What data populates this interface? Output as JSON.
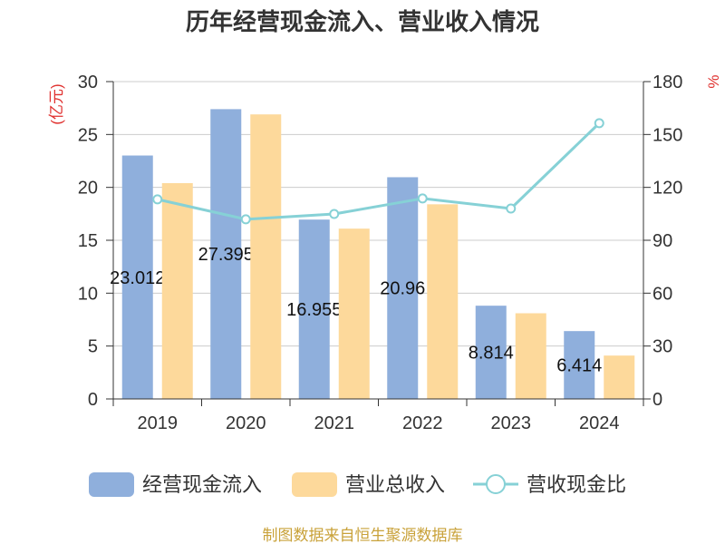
{
  "chart_data": {
    "type": "bar",
    "title": "历年经营现金流入、营业收入情况",
    "categories": [
      "2019",
      "2020",
      "2021",
      "2022",
      "2023",
      "2024"
    ],
    "series": [
      {
        "name": "经营现金流入",
        "type": "bar",
        "axis": "left",
        "color": "#8fafdc",
        "values": [
          23.012,
          27.395,
          16.955,
          20.96,
          8.814,
          6.414
        ],
        "labels": [
          "23.012",
          "27.395",
          "16.955",
          "20.96",
          "8.814",
          "6.414"
        ]
      },
      {
        "name": "营业总收入",
        "type": "bar",
        "axis": "left",
        "color": "#fdd99b",
        "values": [
          20.4,
          26.9,
          16.1,
          18.4,
          8.1,
          4.1
        ]
      },
      {
        "name": "营收现金比",
        "type": "line",
        "axis": "right",
        "color": "#86d1d6",
        "values": [
          113.2,
          101.9,
          104.9,
          113.7,
          108.0,
          156.4
        ]
      }
    ],
    "xlabel": "",
    "ylabel": "(亿元)",
    "ylabel_right": "%",
    "ylim": [
      0,
      30
    ],
    "yticks": [
      0,
      5,
      10,
      15,
      20,
      25,
      30
    ],
    "ylim_right": [
      0,
      180
    ],
    "yticks_right": [
      0,
      30,
      60,
      90,
      120,
      150,
      180
    ],
    "grid": true,
    "legend": "bottom"
  },
  "footer": "制图数据来自恒生聚源数据库"
}
